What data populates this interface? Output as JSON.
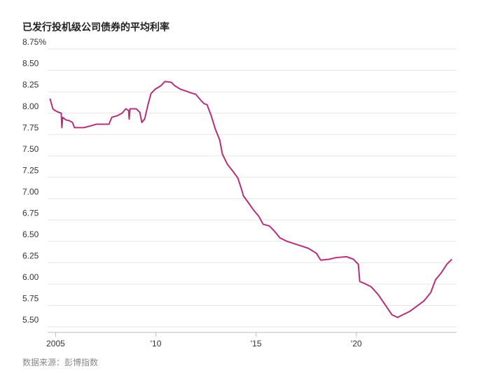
{
  "chart_data": {
    "type": "line",
    "title": "已发行投机级公司债券的平均利率",
    "source": "数据来源：彭博指数",
    "x": [
      2004.72,
      2004.86,
      2004.97,
      2005.14,
      2005.28,
      2005.31,
      2005.35,
      2005.52,
      2005.7,
      2005.84,
      2005.94,
      2006.12,
      2006.4,
      2006.75,
      2007.03,
      2007.27,
      2007.45,
      2007.66,
      2007.8,
      2008.08,
      2008.32,
      2008.5,
      2008.64,
      2008.67,
      2008.71,
      2009.02,
      2009.2,
      2009.3,
      2009.44,
      2009.62,
      2009.76,
      2009.97,
      2010.25,
      2010.45,
      2010.77,
      2010.94,
      2011.22,
      2011.47,
      2011.71,
      2011.99,
      2012.24,
      2012.41,
      2012.55,
      2012.76,
      2012.97,
      2013.18,
      2013.32,
      2013.57,
      2013.81,
      2014.09,
      2014.27,
      2014.37,
      2014.62,
      2014.86,
      2015.14,
      2015.35,
      2015.66,
      2015.91,
      2016.19,
      2016.54,
      2017.06,
      2017.59,
      2018.01,
      2018.22,
      2018.64,
      2018.99,
      2019.51,
      2019.86,
      2020.1,
      2020.17,
      2020.38,
      2020.73,
      2021.08,
      2021.43,
      2021.78,
      2022.06,
      2022.31,
      2022.66,
      2023.01,
      2023.36,
      2023.71,
      2023.95,
      2024.23,
      2024.51,
      2024.76
    ],
    "series": [
      {
        "color": "#b3307a",
        "values": [
          8.17,
          8.05,
          8.03,
          8.01,
          8.0,
          7.83,
          7.95,
          7.92,
          7.91,
          7.89,
          7.83,
          7.83,
          7.83,
          7.85,
          7.87,
          7.87,
          7.87,
          7.87,
          7.95,
          7.97,
          8.0,
          8.05,
          8.03,
          7.93,
          8.05,
          8.05,
          8.01,
          7.89,
          7.93,
          8.11,
          8.23,
          8.28,
          8.32,
          8.37,
          8.36,
          8.32,
          8.28,
          8.26,
          8.24,
          8.22,
          8.15,
          8.11,
          8.1,
          7.97,
          7.81,
          7.69,
          7.52,
          7.4,
          7.33,
          7.24,
          7.11,
          7.03,
          6.95,
          6.87,
          6.79,
          6.7,
          6.68,
          6.62,
          6.54,
          6.5,
          6.46,
          6.42,
          6.36,
          6.28,
          6.29,
          6.31,
          6.32,
          6.29,
          6.23,
          6.03,
          6.01,
          5.97,
          5.88,
          5.76,
          5.64,
          5.61,
          5.64,
          5.68,
          5.74,
          5.8,
          5.9,
          6.05,
          6.13,
          6.23,
          6.29
        ]
      }
    ],
    "xlim": [
      2004.6,
      2025.0
    ],
    "xticks": [
      2005,
      {
        "value": 2010,
        "label": "'10"
      },
      {
        "value": 2015,
        "label": "'15"
      },
      {
        "value": 2020,
        "label": "'20"
      }
    ],
    "ylim": [
      5.5,
      8.75
    ],
    "yticks": [
      {
        "value": 5.5,
        "label": "5.50"
      },
      {
        "value": 5.75,
        "label": "5.75"
      },
      {
        "value": 6,
        "label": "6.00"
      },
      {
        "value": 6.25,
        "label": "6.25"
      },
      {
        "value": 6.5,
        "label": "6.50"
      },
      {
        "value": 6.75,
        "label": "6.75"
      },
      {
        "value": 7,
        "label": "7.00"
      },
      {
        "value": 7.25,
        "label": "7.25"
      },
      {
        "value": 7.5,
        "label": "7.50"
      },
      {
        "value": 7.75,
        "label": "7.75"
      },
      {
        "value": 8,
        "label": "8.00"
      },
      {
        "value": 8.25,
        "label": "8.25"
      },
      {
        "value": 8.5,
        "label": "8.50"
      },
      {
        "value": 8.75,
        "label": "8.75%"
      }
    ],
    "grid": true
  }
}
